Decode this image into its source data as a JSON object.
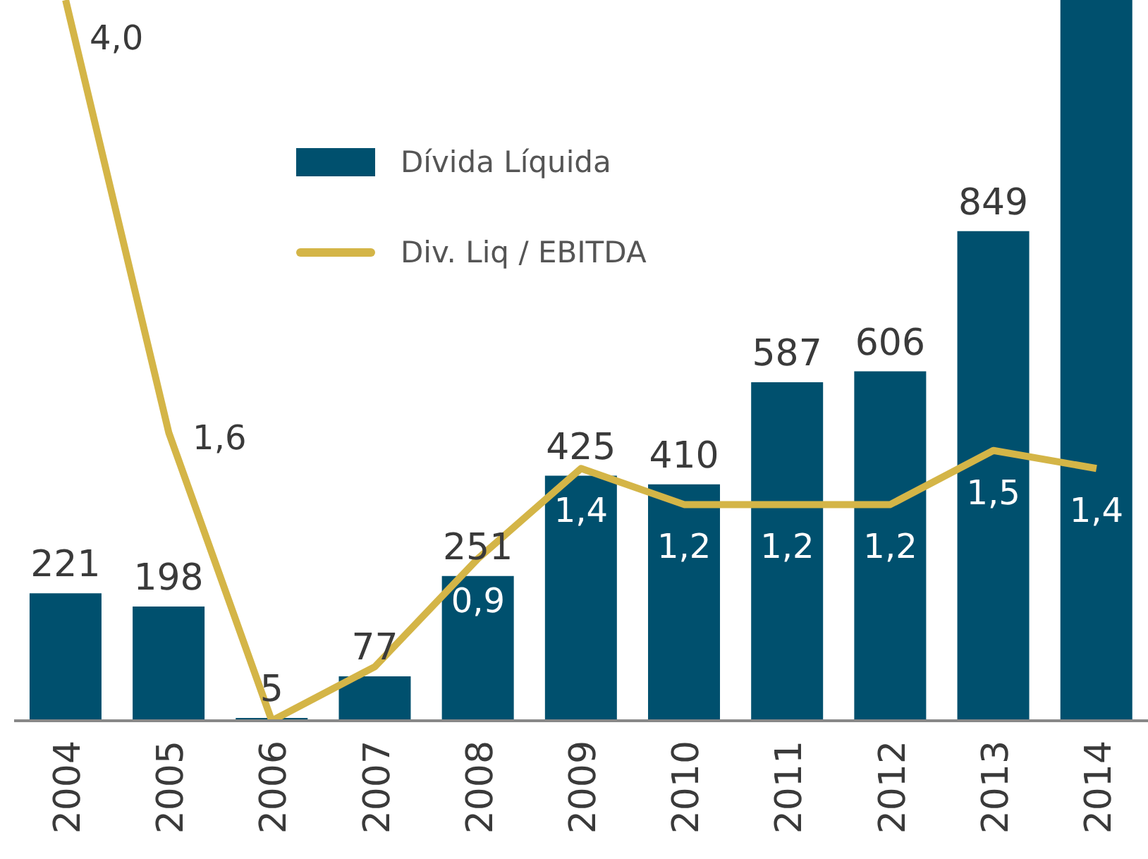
{
  "chart_data": {
    "type": "bar",
    "categories": [
      "2004",
      "2005",
      "2006",
      "2007",
      "2008",
      "2009",
      "2010",
      "2011",
      "2012",
      "2013",
      "2014"
    ],
    "series": [
      {
        "name": "Dívida Líquida",
        "color": "#00506e",
        "values": [
          221,
          198,
          5,
          77,
          251,
          425,
          410,
          587,
          606,
          849,
          1250
        ],
        "value_labels": [
          "221",
          "198",
          "5",
          "77",
          "251",
          "425",
          "410",
          "587",
          "606",
          "849",
          null
        ]
      },
      {
        "name": "Div. Liq / EBITDA",
        "type": "line",
        "axis": "y2",
        "color": "#d4b547",
        "values": [
          4.0,
          1.6,
          0,
          0.3,
          0.9,
          1.4,
          1.2,
          1.2,
          1.2,
          1.5,
          1.4
        ],
        "value_labels": [
          "4,0",
          "1,6",
          null,
          null,
          "0,9",
          "1,4",
          "1,2",
          "1,2",
          "1,2",
          "1,5",
          "1,4"
        ]
      }
    ],
    "ylim": [
      0,
      1250
    ],
    "y2lim": [
      0,
      4
    ],
    "tick_labels": "x",
    "legend": "top",
    "marker": "none",
    "line_style": "solid"
  }
}
